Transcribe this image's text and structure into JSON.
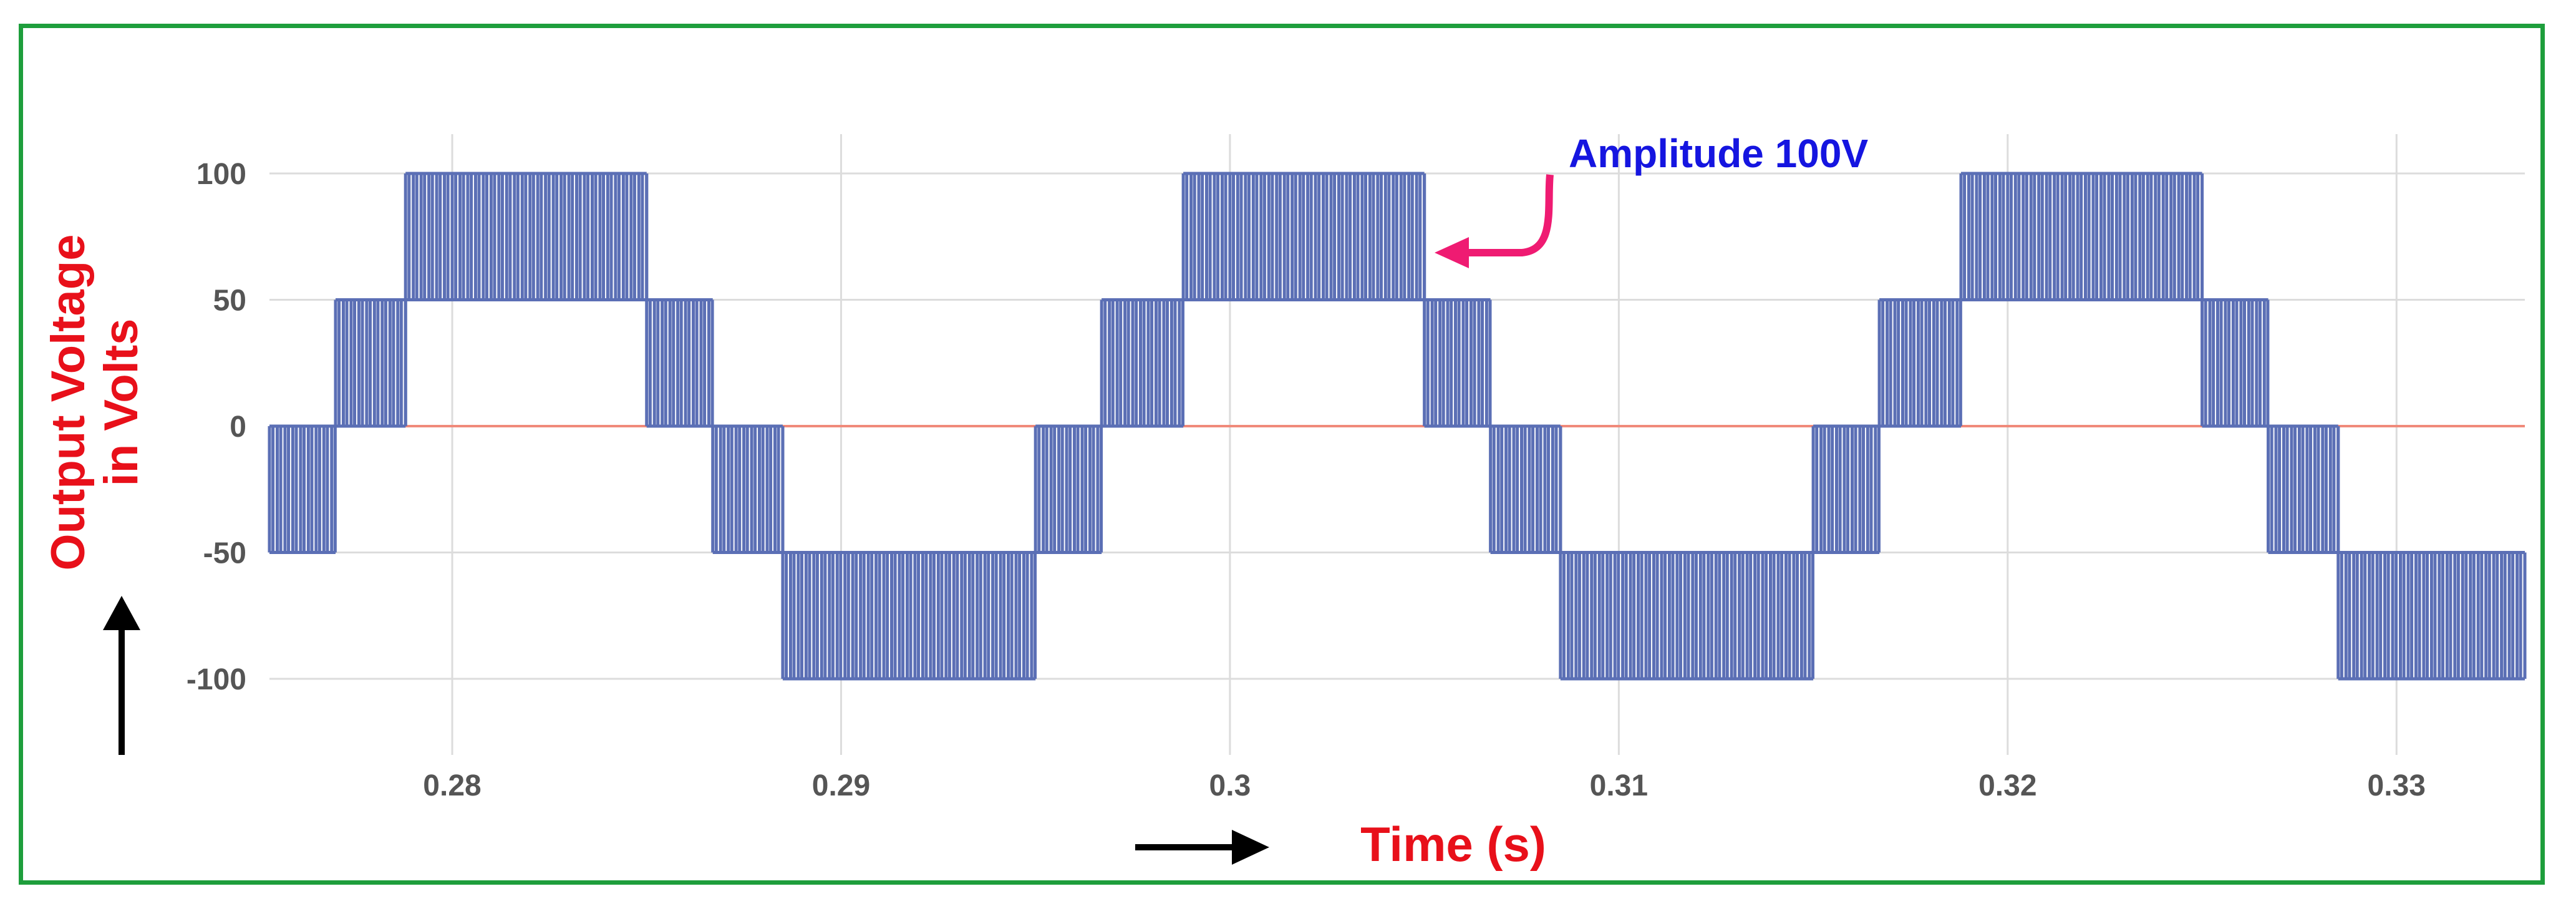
{
  "chart_data": {
    "type": "line",
    "xlabel": "Time (s)",
    "ylabel_lines": [
      "Output Voltage",
      "in Volts"
    ],
    "xlim": [
      0.2753,
      0.3333
    ],
    "ylim": [
      -125,
      110
    ],
    "xticks": [
      0.28,
      0.29,
      0.3,
      0.31,
      0.32,
      0.33
    ],
    "xtick_labels": [
      "0.28",
      "0.29",
      "0.3",
      "0.31",
      "0.32",
      "0.33"
    ],
    "yticks": [
      100,
      50,
      0,
      -50,
      -100
    ],
    "ytick_labels": [
      "100",
      "50",
      "0",
      "-50",
      "-100"
    ],
    "grid": true,
    "reference_line": 0,
    "waveform": {
      "description_levels": [
        -100,
        -50,
        0,
        50,
        100
      ],
      "fundamental_period_s": 0.02,
      "amplitude_v": 100,
      "pulse_period_s": 0.0002,
      "level_segments": [
        {
          "start": 0.2753,
          "end": 0.277,
          "low": -50,
          "high": 0
        },
        {
          "start": 0.277,
          "end": 0.2788,
          "low": 0,
          "high": 50
        },
        {
          "start": 0.2788,
          "end": 0.285,
          "low": 50,
          "high": 100
        },
        {
          "start": 0.285,
          "end": 0.2867,
          "low": 0,
          "high": 50
        },
        {
          "start": 0.2867,
          "end": 0.2885,
          "low": -50,
          "high": 0
        },
        {
          "start": 0.2885,
          "end": 0.295,
          "low": -100,
          "high": -50
        },
        {
          "start": 0.295,
          "end": 0.2967,
          "low": -50,
          "high": 0
        },
        {
          "start": 0.2967,
          "end": 0.2988,
          "low": 0,
          "high": 50
        },
        {
          "start": 0.2988,
          "end": 0.305,
          "low": 50,
          "high": 100
        },
        {
          "start": 0.305,
          "end": 0.3067,
          "low": 0,
          "high": 50
        },
        {
          "start": 0.3067,
          "end": 0.3085,
          "low": -50,
          "high": 0
        },
        {
          "start": 0.3085,
          "end": 0.315,
          "low": -100,
          "high": -50
        },
        {
          "start": 0.315,
          "end": 0.3167,
          "low": -50,
          "high": 0
        },
        {
          "start": 0.3167,
          "end": 0.3188,
          "low": 0,
          "high": 50
        },
        {
          "start": 0.3188,
          "end": 0.325,
          "low": 50,
          "high": 100
        },
        {
          "start": 0.325,
          "end": 0.3267,
          "low": 0,
          "high": 50
        },
        {
          "start": 0.3267,
          "end": 0.3285,
          "low": -50,
          "high": 0
        },
        {
          "start": 0.3285,
          "end": 0.3333,
          "low": -100,
          "high": -50
        }
      ]
    },
    "annotation": {
      "text": "Amplitude 100V",
      "points_to": {
        "x": 0.3047,
        "y": 68
      }
    }
  },
  "colors": {
    "waveform": "#5b6fb5",
    "zero_line": "#f08a7a",
    "grid": "#dcdcdc",
    "ylabel": "#e8101a",
    "xlabel": "#e8101a",
    "annotation_text": "#1515e0",
    "annotation_arrow": "#ef1b72",
    "direction_arrows": "#000000",
    "frame": "#1e9e3c"
  }
}
